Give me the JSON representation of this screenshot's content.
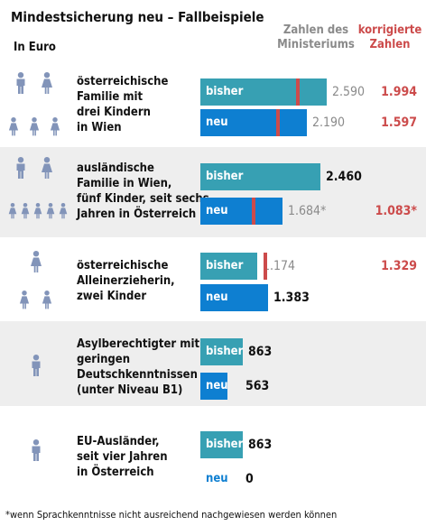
{
  "header": {
    "title": "Mindestsicherung neu – Fallbeispiele",
    "unit": "In Euro",
    "col_ministry": [
      "Zahlen des",
      "Ministeriums"
    ],
    "col_corrected": [
      "korrigierte",
      "Zahlen"
    ]
  },
  "footnote": "*wenn Sprachkenntnisse nicht ausreichend nachgewiesen werden können",
  "colors": {
    "bisher": "#37a0b3",
    "neu": "#0e7fd1",
    "marker": "#cc4b4b",
    "icon": "#8294b9",
    "band": "#eeeeee"
  },
  "chart_data": {
    "type": "bar",
    "unit": "Euro",
    "series": [
      {
        "name": "bisher",
        "values": [
          2590,
          2460,
          1174,
          863,
          863
        ]
      },
      {
        "name": "neu",
        "values": [
          2190,
          1684,
          1383,
          563,
          0
        ]
      }
    ],
    "corrected": {
      "bisher": [
        1994,
        null,
        1329,
        null,
        null
      ],
      "neu": [
        1597,
        1083,
        null,
        null,
        null
      ]
    },
    "cases": [
      {
        "lines": [
          "österreichische",
          "Familie mit",
          "drei Kindern",
          "in Wien"
        ],
        "icon": "family-two-adults-three-children-icon",
        "bars": [
          {
            "label": "bisher",
            "value": 2590,
            "value_text": "2.590",
            "value_style": "gray",
            "corrected": 1994,
            "corrected_text": "1.994"
          },
          {
            "label": "neu",
            "value": 2190,
            "value_text": "2.190",
            "value_style": "gray",
            "corrected": 1597,
            "corrected_text": "1.597"
          }
        ]
      },
      {
        "lines": [
          "ausländische",
          "Familie in Wien,",
          "fünf Kinder, seit sechs",
          "Jahren in Österreich"
        ],
        "icon": "family-two-adults-five-children-icon",
        "bars": [
          {
            "label": "bisher",
            "value": 2460,
            "value_text": "2.460",
            "value_style": "black",
            "corrected": null,
            "corrected_text": ""
          },
          {
            "label": "neu",
            "value": 1684,
            "value_text": "1.684*",
            "value_style": "gray",
            "corrected": 1083,
            "corrected_text": "1.083*"
          }
        ]
      },
      {
        "lines": [
          "österreichische",
          "Alleinerzieherin,",
          "zwei Kinder"
        ],
        "icon": "single-mother-two-children-icon",
        "bars": [
          {
            "label": "bisher",
            "value": 1174,
            "value_text": "1.174",
            "value_style": "gray",
            "corrected": 1329,
            "corrected_text": "1.329"
          },
          {
            "label": "neu",
            "value": 1383,
            "value_text": "1.383",
            "value_style": "black",
            "corrected": null,
            "corrected_text": ""
          }
        ]
      },
      {
        "lines": [
          "Asylberechtigter mit",
          "geringen",
          "Deutschkenntnissen",
          "(unter Niveau B1)"
        ],
        "icon": "single-man-icon",
        "bars": [
          {
            "label": "bisher",
            "value": 863,
            "value_text": "863",
            "value_style": "black",
            "corrected": null,
            "corrected_text": ""
          },
          {
            "label": "neu",
            "value": 563,
            "value_text": "563",
            "value_style": "black",
            "corrected": null,
            "corrected_text": ""
          }
        ]
      },
      {
        "lines": [
          "EU-Ausländer,",
          "seit vier Jahren",
          "in Österreich"
        ],
        "icon": "single-man-icon",
        "bars": [
          {
            "label": "bisher",
            "value": 863,
            "value_text": "863",
            "value_style": "black",
            "corrected": null,
            "corrected_text": ""
          },
          {
            "label": "neu",
            "value": 0,
            "value_text": "0",
            "value_style": "black",
            "corrected": null,
            "corrected_text": ""
          }
        ]
      }
    ]
  }
}
